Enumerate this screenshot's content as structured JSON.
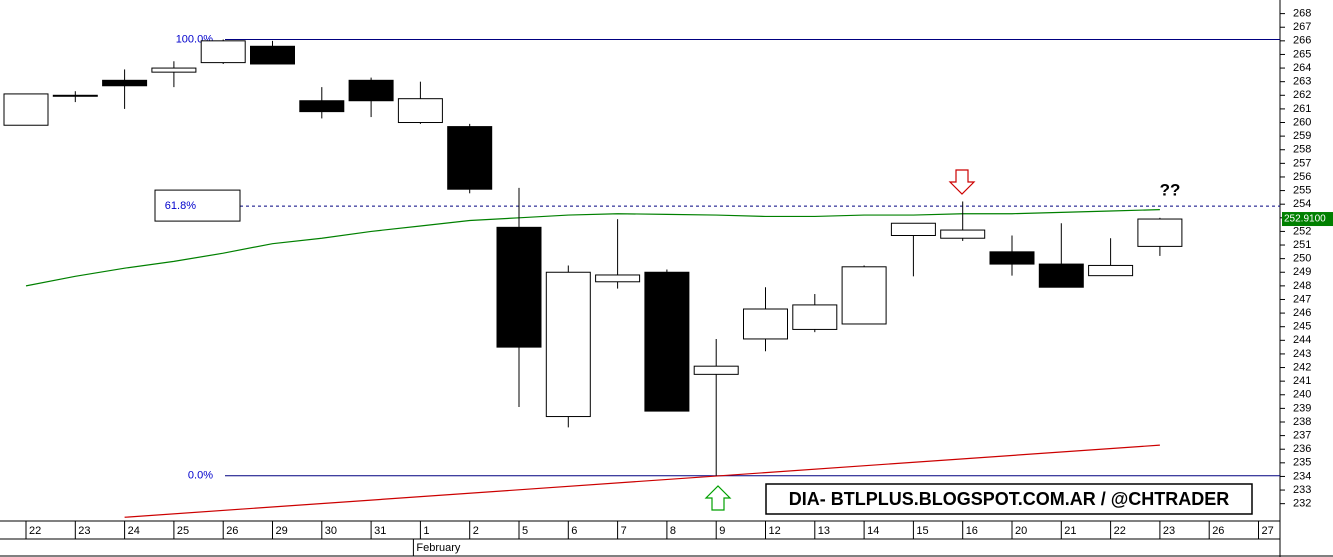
{
  "chart_data": {
    "type": "candlestick",
    "categories": [
      "22",
      "23",
      "24",
      "25",
      "26",
      "29",
      "30",
      "31",
      "1",
      "2",
      "5",
      "6",
      "7",
      "8",
      "9",
      "12",
      "13",
      "14",
      "15",
      "16",
      "20",
      "21",
      "22",
      "23",
      "26",
      "27"
    ],
    "open": [
      259.8,
      262.0,
      263.1,
      263.7,
      264.4,
      265.6,
      261.6,
      263.1,
      260.0,
      259.7,
      252.3,
      238.4,
      248.3,
      249.0,
      241.5,
      244.1,
      244.8,
      245.2,
      251.7,
      251.5,
      250.5,
      249.6,
      248.75,
      250.9,
      null,
      null
    ],
    "high": [
      262.1,
      262.3,
      263.9,
      264.5,
      266.1,
      266.0,
      262.6,
      263.3,
      263.0,
      259.9,
      255.2,
      249.5,
      252.9,
      249.2,
      244.1,
      247.9,
      247.4,
      249.5,
      252.6,
      254.2,
      251.7,
      252.6,
      251.5,
      253.0,
      null,
      null
    ],
    "low": [
      259.8,
      261.5,
      261.0,
      262.6,
      264.3,
      264.3,
      260.3,
      260.4,
      259.9,
      254.8,
      239.1,
      237.6,
      247.8,
      238.8,
      234.05,
      243.2,
      244.6,
      245.2,
      248.7,
      251.3,
      248.75,
      247.9,
      248.75,
      250.2,
      null,
      null
    ],
    "close": [
      262.1,
      262.0,
      262.7,
      264.0,
      266.0,
      264.3,
      260.8,
      261.6,
      261.75,
      255.1,
      243.5,
      249.0,
      248.8,
      238.8,
      242.1,
      246.3,
      246.6,
      249.4,
      252.6,
      252.1,
      249.6,
      247.9,
      249.5,
      252.91,
      null,
      null
    ],
    "up_color": "#ffffff",
    "down_color": "#000000",
    "series": [
      {
        "color": "#008000",
        "values": [
          248.0,
          248.7,
          249.3,
          249.8,
          250.4,
          251.1,
          251.5,
          252.0,
          252.4,
          252.8,
          253.0,
          253.2,
          253.3,
          253.25,
          253.2,
          253.1,
          253.1,
          253.2,
          253.2,
          253.3,
          253.3,
          253.4,
          253.5,
          253.6,
          null,
          null
        ]
      },
      {
        "color": "#cc0000",
        "values": [
          null,
          null,
          231.0,
          null,
          null,
          null,
          null,
          null,
          null,
          null,
          null,
          null,
          null,
          null,
          null,
          null,
          null,
          null,
          null,
          null,
          null,
          null,
          null,
          236.3,
          null,
          null
        ]
      }
    ],
    "fib_levels": [
      {
        "label": "100.0%",
        "value": 266.1,
        "style": "solid"
      },
      {
        "label": "61.8%",
        "value": 253.86,
        "style": "dashed"
      },
      {
        "label": "0.0%",
        "value": 234.05,
        "style": "solid"
      }
    ],
    "last_price": {
      "value": 252.91,
      "label": "252.9100"
    },
    "month_label": "February",
    "annotation": "??",
    "watermark": "DIA- BTLPLUS.BLOGSPOT.COM.AR / @CHTRADER",
    "ylim": [
      230.8,
      269.0
    ],
    "yticks": [
      232,
      233,
      234,
      235,
      236,
      237,
      238,
      239,
      240,
      241,
      242,
      243,
      244,
      245,
      246,
      247,
      248,
      249,
      250,
      251,
      252,
      253,
      254,
      255,
      256,
      257,
      258,
      259,
      260,
      261,
      262,
      263,
      264,
      265,
      266,
      267,
      268
    ]
  }
}
